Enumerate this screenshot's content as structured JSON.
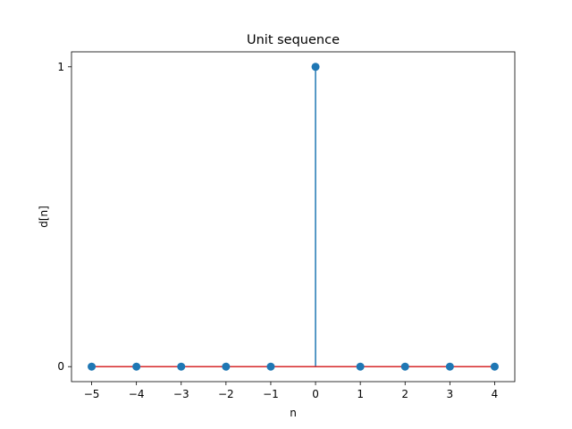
{
  "chart_data": {
    "type": "stem",
    "title": "Unit sequence",
    "xlabel": "n",
    "ylabel": "d[n]",
    "x": [
      -5,
      -4,
      -3,
      -2,
      -1,
      0,
      1,
      2,
      3,
      4
    ],
    "series": [
      {
        "values": [
          0,
          0,
          0,
          0,
          0,
          1,
          0,
          0,
          0,
          0
        ]
      }
    ],
    "xlim": [
      -5.45,
      4.45
    ],
    "ylim": [
      -0.05,
      1.05
    ],
    "xticks": [
      -5,
      -4,
      -3,
      -2,
      -1,
      0,
      1,
      2,
      3,
      4
    ],
    "xtick_labels": [
      "−5",
      "−4",
      "−3",
      "−2",
      "−1",
      "0",
      "1",
      "2",
      "3",
      "4"
    ],
    "yticks": [
      0,
      1
    ],
    "ytick_labels": [
      "0",
      "1"
    ],
    "grid": false,
    "colors": {
      "stem": "#1f77b4",
      "marker": "#1f77b4",
      "baseline": "#d62728"
    }
  }
}
